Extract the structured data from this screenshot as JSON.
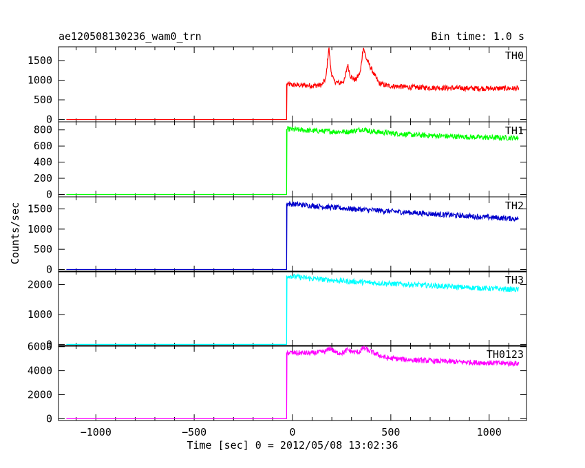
{
  "header": {
    "title": "ae120508130236_wam0_trn",
    "bin_time": "Bin time: 1.0 s"
  },
  "chart_data": {
    "type": "line",
    "xlabel": "Time [sec] 0 = 2012/05/08 13:02:36",
    "ylabel": "Counts/sec",
    "xlim": [
      -1190,
      1190
    ],
    "x_ticks": [
      -1000,
      -500,
      0,
      500,
      1000
    ],
    "x_tick_labels": [
      "−1000",
      "−500",
      "0",
      "500",
      "1000"
    ],
    "x_start": -1150,
    "x_end": 1150,
    "trigger_time": -30,
    "panels": [
      {
        "name": "TH0",
        "color": "#ff0000",
        "ylim": [
          -60,
          1850
        ],
        "y_ticks": [
          0,
          500,
          1000,
          1500
        ],
        "points": [
          [
            -1150,
            0
          ],
          [
            -30,
            0
          ],
          [
            -30,
            900
          ],
          [
            0,
            880
          ],
          [
            100,
            860
          ],
          [
            150,
            880
          ],
          [
            170,
            1050
          ],
          [
            185,
            1850
          ],
          [
            195,
            1250
          ],
          [
            210,
            980
          ],
          [
            240,
            920
          ],
          [
            265,
            1000
          ],
          [
            280,
            1400
          ],
          [
            295,
            1100
          ],
          [
            320,
            1000
          ],
          [
            345,
            1200
          ],
          [
            360,
            1850
          ],
          [
            375,
            1550
          ],
          [
            400,
            1300
          ],
          [
            420,
            1100
          ],
          [
            440,
            920
          ],
          [
            480,
            860
          ],
          [
            600,
            820
          ],
          [
            800,
            800
          ],
          [
            1000,
            790
          ],
          [
            1150,
            790
          ]
        ]
      },
      {
        "name": "TH1",
        "color": "#00ff00",
        "ylim": [
          -30,
          900
        ],
        "y_ticks": [
          0,
          200,
          400,
          600,
          800
        ],
        "points": [
          [
            -1150,
            0
          ],
          [
            -30,
            0
          ],
          [
            -30,
            810
          ],
          [
            100,
            790
          ],
          [
            200,
            780
          ],
          [
            280,
            775
          ],
          [
            360,
            810
          ],
          [
            400,
            780
          ],
          [
            600,
            740
          ],
          [
            800,
            720
          ],
          [
            1000,
            705
          ],
          [
            1150,
            700
          ]
        ]
      },
      {
        "name": "TH2",
        "color": "#0000cc",
        "ylim": [
          -60,
          1800
        ],
        "y_ticks": [
          0,
          500,
          1000,
          1500
        ],
        "points": [
          [
            -1150,
            0
          ],
          [
            -30,
            0
          ],
          [
            -30,
            1630
          ],
          [
            100,
            1580
          ],
          [
            300,
            1500
          ],
          [
            500,
            1440
          ],
          [
            700,
            1380
          ],
          [
            900,
            1320
          ],
          [
            1150,
            1250
          ]
        ]
      },
      {
        "name": "TH3",
        "color": "#00ffff",
        "ylim": [
          -60,
          2450
        ],
        "y_ticks": [
          0,
          1000,
          2000
        ],
        "points": [
          [
            -1150,
            0
          ],
          [
            -30,
            0
          ],
          [
            -30,
            2300
          ],
          [
            100,
            2200
          ],
          [
            300,
            2100
          ],
          [
            500,
            2030
          ],
          [
            700,
            1970
          ],
          [
            900,
            1900
          ],
          [
            1150,
            1830
          ]
        ]
      },
      {
        "name": "TH0123",
        "color": "#ff00ff",
        "ylim": [
          -150,
          6100
        ],
        "y_ticks": [
          0,
          2000,
          4000,
          6000
        ],
        "points": [
          [
            -1150,
            0
          ],
          [
            -30,
            0
          ],
          [
            -30,
            5500
          ],
          [
            100,
            5450
          ],
          [
            170,
            5600
          ],
          [
            190,
            5900
          ],
          [
            220,
            5500
          ],
          [
            260,
            5500
          ],
          [
            280,
            5750
          ],
          [
            310,
            5550
          ],
          [
            340,
            5550
          ],
          [
            360,
            5900
          ],
          [
            390,
            5650
          ],
          [
            430,
            5350
          ],
          [
            480,
            5050
          ],
          [
            600,
            4900
          ],
          [
            800,
            4750
          ],
          [
            1000,
            4650
          ],
          [
            1150,
            4600
          ]
        ]
      }
    ]
  }
}
